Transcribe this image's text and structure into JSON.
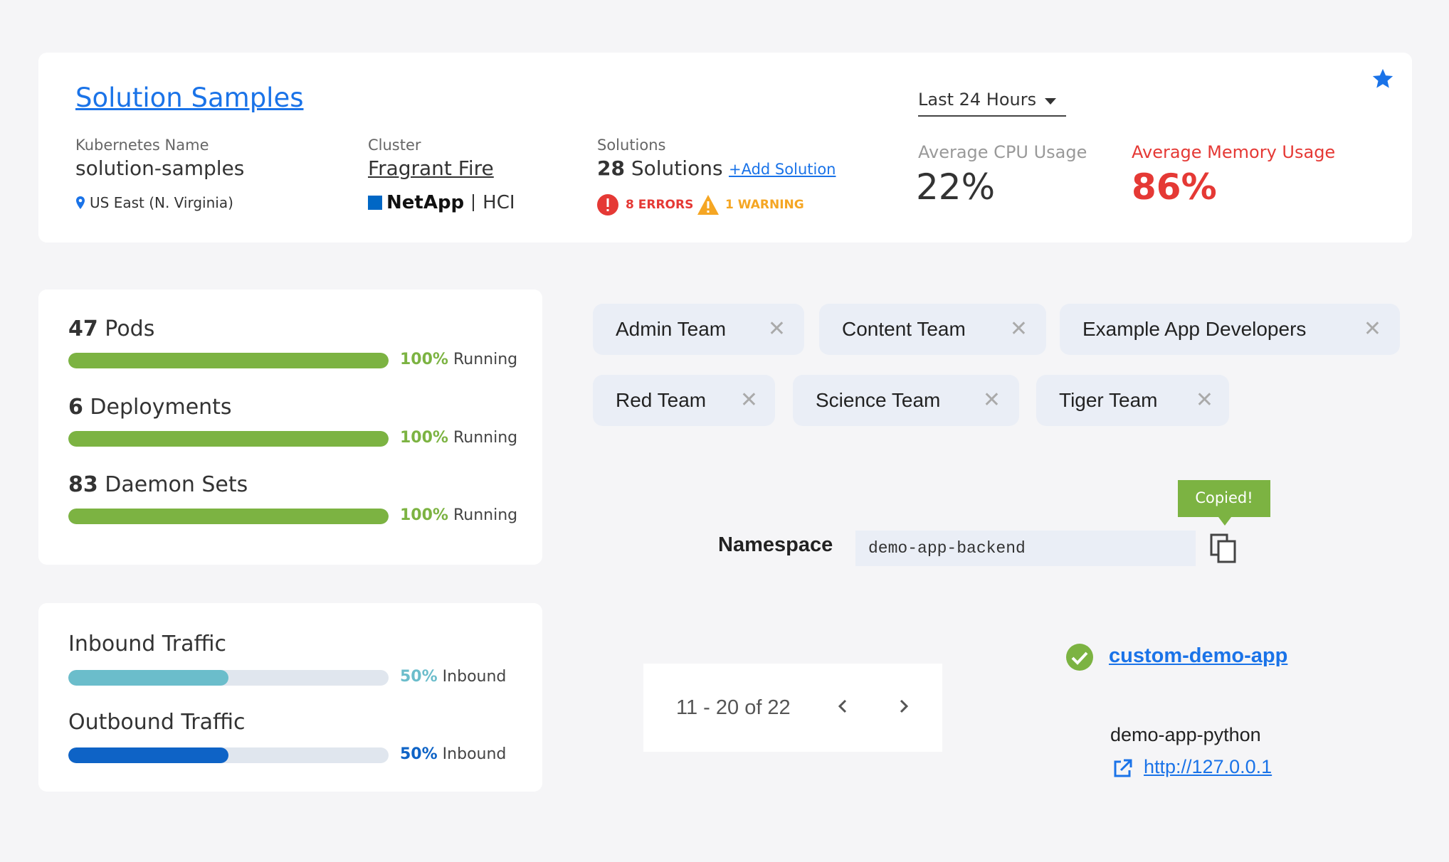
{
  "header": {
    "title": "Solution Samples",
    "kubernetes": {
      "label": "Kubernetes Name",
      "value": "solution-samples",
      "region": "US East (N. Virginia)"
    },
    "cluster": {
      "label": "Cluster",
      "value": "Fragrant Fire",
      "vendor": "NetApp",
      "product": "HCI"
    },
    "solutions": {
      "label": "Solutions",
      "count": "28",
      "unit": "Solutions",
      "add_label": "+Add Solution",
      "errors": "8 ERRORS",
      "warnings": "1 WARNING"
    },
    "time_range": "Last 24 Hours",
    "cpu": {
      "label": "Average CPU Usage",
      "value": "22%"
    },
    "memory": {
      "label": "Average Memory Usage",
      "value": "86%"
    }
  },
  "resources": [
    {
      "count": "47",
      "name": "Pods",
      "percent": "100%",
      "status": "Running",
      "fill": 1.0
    },
    {
      "count": "6",
      "name": "Deployments",
      "percent": "100%",
      "status": "Running",
      "fill": 1.0
    },
    {
      "count": "83",
      "name": "Daemon Sets",
      "percent": "100%",
      "status": "Running",
      "fill": 1.0
    }
  ],
  "traffic": [
    {
      "name": "Inbound Traffic",
      "percent": "50%",
      "status": "Inbound",
      "fill": 0.5
    },
    {
      "name": "Outbound Traffic",
      "percent": "50%",
      "status": "Inbound",
      "fill": 0.5
    }
  ],
  "teams": [
    "Admin Team",
    "Content Team",
    "Example App Developers",
    "Red Team",
    "Science Team",
    "Tiger Team"
  ],
  "close_glyph": "✕",
  "namespace": {
    "label": "Namespace",
    "value": "demo-app-backend",
    "tooltip": "Copied!"
  },
  "pagination": {
    "range": "11 - 20 of 22"
  },
  "app": {
    "link": "custom-demo-app",
    "name": "demo-app-python",
    "url": "http://127.0.0.1"
  },
  "colors": {
    "accent": "#1a73e8",
    "green": "#7cb342",
    "error": "#e53935",
    "warning": "#f5a623",
    "teal": "#6bbdcb",
    "blue": "#0e63c6"
  }
}
